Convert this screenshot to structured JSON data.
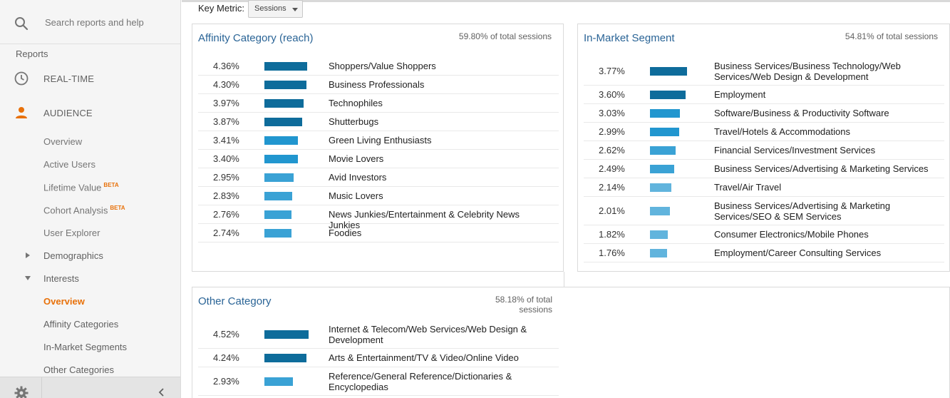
{
  "sidebar": {
    "search_placeholder": "Search reports and help",
    "reports_label": "Reports",
    "realtime_label": "REAL-TIME",
    "audience_label": "AUDIENCE",
    "items": [
      {
        "label": "Overview"
      },
      {
        "label": "Active Users"
      },
      {
        "label": "Lifetime Value",
        "badge": "BETA"
      },
      {
        "label": "Cohort Analysis",
        "badge": "BETA"
      },
      {
        "label": "User Explorer"
      },
      {
        "label": "Demographics"
      },
      {
        "label": "Interests"
      },
      {
        "label": "Overview"
      },
      {
        "label": "Affinity Categories"
      },
      {
        "label": "In-Market Segments"
      },
      {
        "label": "Other Categories"
      }
    ]
  },
  "toolbar": {
    "key_metric_label": "Key Metric:",
    "key_metric_value": "Sessions"
  },
  "colors": {
    "dark": "#0e6c9b",
    "mid": "#2196cf",
    "light": "#61b4dd",
    "accent_orange": "#e8710a",
    "title_blue": "#2a6496"
  },
  "panels": {
    "affinity": {
      "title": "Affinity Category (reach)",
      "subtitle": "59.80% of total sessions",
      "rows": [
        {
          "pct": "4.36%",
          "value": 4.36,
          "label": "Shoppers/Value Shoppers"
        },
        {
          "pct": "4.30%",
          "value": 4.3,
          "label": "Business Professionals"
        },
        {
          "pct": "3.97%",
          "value": 3.97,
          "label": "Technophiles"
        },
        {
          "pct": "3.87%",
          "value": 3.87,
          "label": "Shutterbugs"
        },
        {
          "pct": "3.41%",
          "value": 3.41,
          "label": "Green Living Enthusiasts"
        },
        {
          "pct": "3.40%",
          "value": 3.4,
          "label": "Movie Lovers"
        },
        {
          "pct": "2.95%",
          "value": 2.95,
          "label": "Avid Investors"
        },
        {
          "pct": "2.83%",
          "value": 2.83,
          "label": "Music Lovers"
        },
        {
          "pct": "2.76%",
          "value": 2.76,
          "label": "News Junkies/Entertainment & Celebrity News Junkies"
        },
        {
          "pct": "2.74%",
          "value": 2.74,
          "label": "Foodies"
        }
      ]
    },
    "inmarket": {
      "title": "In-Market Segment",
      "subtitle": "54.81% of total sessions",
      "rows": [
        {
          "pct": "3.77%",
          "value": 3.77,
          "label": "Business Services/Business Technology/Web Services/Web Design & Development"
        },
        {
          "pct": "3.60%",
          "value": 3.6,
          "label": "Employment"
        },
        {
          "pct": "3.03%",
          "value": 3.03,
          "label": "Software/Business & Productivity Software"
        },
        {
          "pct": "2.99%",
          "value": 2.99,
          "label": "Travel/Hotels & Accommodations"
        },
        {
          "pct": "2.62%",
          "value": 2.62,
          "label": "Financial Services/Investment Services"
        },
        {
          "pct": "2.49%",
          "value": 2.49,
          "label": "Business Services/Advertising & Marketing Services"
        },
        {
          "pct": "2.14%",
          "value": 2.14,
          "label": "Travel/Air Travel"
        },
        {
          "pct": "2.01%",
          "value": 2.01,
          "label": "Business Services/Advertising & Marketing Services/SEO & SEM Services"
        },
        {
          "pct": "1.82%",
          "value": 1.82,
          "label": "Consumer Electronics/Mobile Phones"
        },
        {
          "pct": "1.76%",
          "value": 1.76,
          "label": "Employment/Career Consulting Services"
        }
      ]
    },
    "other": {
      "title": "Other Category",
      "subtitle": "58.18% of total sessions",
      "rows": [
        {
          "pct": "4.52%",
          "value": 4.52,
          "label": "Internet & Telecom/Web Services/Web Design & Development"
        },
        {
          "pct": "4.24%",
          "value": 4.24,
          "label": "Arts & Entertainment/TV & Video/Online Video"
        },
        {
          "pct": "2.93%",
          "value": 2.93,
          "label": "Reference/General Reference/Dictionaries & Encyclopedias"
        }
      ]
    }
  }
}
